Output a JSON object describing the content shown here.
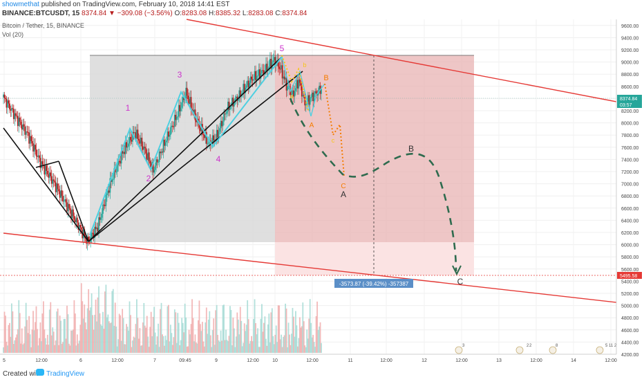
{
  "header": {
    "author": "showmethat",
    "published_text": " published on TradingView.com, February 10, 2018 14:41 EST",
    "symbol": "BINANCE:BTCUSDT, 15",
    "last": "8374.84",
    "change": "▼ −309.08 (−3.56%)",
    "o_label": "O:",
    "o": "8283.08",
    "h_label": "H:",
    "h": "8385.32",
    "l_label": "L:",
    "l": "8283.08",
    "c_label": "C:",
    "c": "8374.84",
    "pane_title": "Bitcoin / Tether, 15, BINANCE",
    "vol_label": "Vol (20)"
  },
  "footer": {
    "created_with": "Created with",
    "brand": "TradingView"
  },
  "colors": {
    "up": "#26a69a",
    "down": "#b71c1c",
    "channel": "#e53935",
    "wave": "#4dd0e1",
    "wedge": "#111111",
    "projection": "#2e6b4e",
    "waveLabel": "#cc33cc",
    "abc1": "#f5c518",
    "abc2": "#f57c00",
    "shade": "#dadada",
    "loss": "#e57373"
  },
  "chart_data": {
    "type": "candlestick",
    "title": "Bitcoin / Tether, 15, BINANCE",
    "ylim": [
      4200,
      9700
    ],
    "y_ticks": [
      "9600.00",
      "9400.00",
      "9200.00",
      "9000.00",
      "8800.00",
      "8600.00",
      "8400.00",
      "8200.00",
      "8000.00",
      "7800.00",
      "7600.00",
      "7400.00",
      "7200.00",
      "7000.00",
      "6800.00",
      "6600.00",
      "6400.00",
      "6200.00",
      "6000.00",
      "5800.00",
      "5600.00",
      "5400.00",
      "5200.00",
      "5000.00",
      "4800.00",
      "4600.00",
      "4400.00",
      "4200.00"
    ],
    "x_ticks": [
      "5",
      "12:00",
      "6",
      "12:00",
      "7",
      "09:45",
      "9",
      "12:00",
      "10",
      "12:00",
      "11",
      "12:00",
      "12",
      "12:00",
      "13",
      "12:00",
      "14",
      "12:00"
    ],
    "price_labels": {
      "current": "8374.84",
      "countdown": "03:57",
      "target": "5495.58"
    },
    "measure_label": "-3573.87 (-39.42%) -357387",
    "wave_labels": [
      "1",
      "2",
      "3",
      "4",
      "5"
    ],
    "abc_small_labels": [
      "a",
      "b",
      "c",
      "A",
      "B",
      "C"
    ],
    "projection_labels": [
      "A",
      "B",
      "C"
    ],
    "event_badges": [
      "3",
      "2",
      "2",
      "8",
      "5 11 2"
    ],
    "trend_points": [
      {
        "t": 0,
        "v": 8420
      },
      {
        "t": 12,
        "v": 8100
      },
      {
        "t": 24,
        "v": 7800
      },
      {
        "t": 36,
        "v": 7350
      },
      {
        "t": 48,
        "v": 7050
      },
      {
        "t": 60,
        "v": 6700
      },
      {
        "t": 72,
        "v": 6350
      },
      {
        "t": 82,
        "v": 6050
      },
      {
        "t": 92,
        "v": 6300
      },
      {
        "t": 104,
        "v": 7000
      },
      {
        "t": 116,
        "v": 7500
      },
      {
        "t": 128,
        "v": 7850
      },
      {
        "t": 138,
        "v": 7550
      },
      {
        "t": 146,
        "v": 7220
      },
      {
        "t": 158,
        "v": 7700
      },
      {
        "t": 170,
        "v": 8150
      },
      {
        "t": 178,
        "v": 8500
      },
      {
        "t": 188,
        "v": 8050
      },
      {
        "t": 200,
        "v": 7650
      },
      {
        "t": 208,
        "v": 7780
      },
      {
        "t": 218,
        "v": 8230
      },
      {
        "t": 230,
        "v": 8450
      },
      {
        "t": 242,
        "v": 8720
      },
      {
        "t": 254,
        "v": 8850
      },
      {
        "t": 264,
        "v": 9030
      },
      {
        "t": 270,
        "v": 8900
      },
      {
        "t": 276,
        "v": 8620
      },
      {
        "t": 282,
        "v": 8450
      },
      {
        "t": 288,
        "v": 8700
      },
      {
        "t": 294,
        "v": 8320
      },
      {
        "t": 302,
        "v": 8450
      },
      {
        "t": 310,
        "v": 8560
      }
    ]
  }
}
